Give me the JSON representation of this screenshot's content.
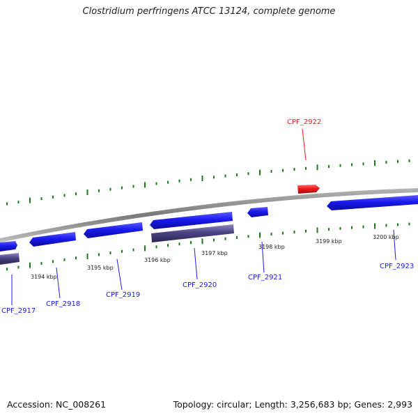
{
  "title": "Clostridium perfringens ATCC 13124, complete genome",
  "footer": {
    "accession": "Accession: NC_008261",
    "summary": "Topology: circular; Length: 3,256,683 bp; Genes: 2,993"
  },
  "scale": {
    "unit": "kbp",
    "ticks": [
      {
        "label": "3194 kbp"
      },
      {
        "label": "3195 kbp"
      },
      {
        "label": "3196 kbp"
      },
      {
        "label": "3197 kbp"
      },
      {
        "label": "3198 kbp"
      },
      {
        "label": "3199 kbp"
      },
      {
        "label": "3200 kbp"
      }
    ]
  },
  "genes": [
    {
      "id": "CPF_2917",
      "strand": "reverse",
      "color": "#1a1aee"
    },
    {
      "id": "CPF_2918",
      "strand": "reverse",
      "color": "#1a1aee"
    },
    {
      "id": "CPF_2919",
      "strand": "reverse",
      "color": "#1a1aee"
    },
    {
      "id": "CPF_2920",
      "strand": "reverse",
      "color": "#1a1aee"
    },
    {
      "id": "CPF_2921",
      "strand": "reverse",
      "color": "#1a1aee"
    },
    {
      "id": "CPF_2922",
      "strand": "forward",
      "color": "#ee1a1a"
    },
    {
      "id": "CPF_2923",
      "strand": "reverse",
      "color": "#1a1aee"
    }
  ],
  "colors": {
    "forward_gene": "#ee1a1a",
    "reverse_gene": "#1a1aee",
    "rna_feature": "#4b4381",
    "backbone": "#888888",
    "ticks": "#1a7a1a"
  }
}
